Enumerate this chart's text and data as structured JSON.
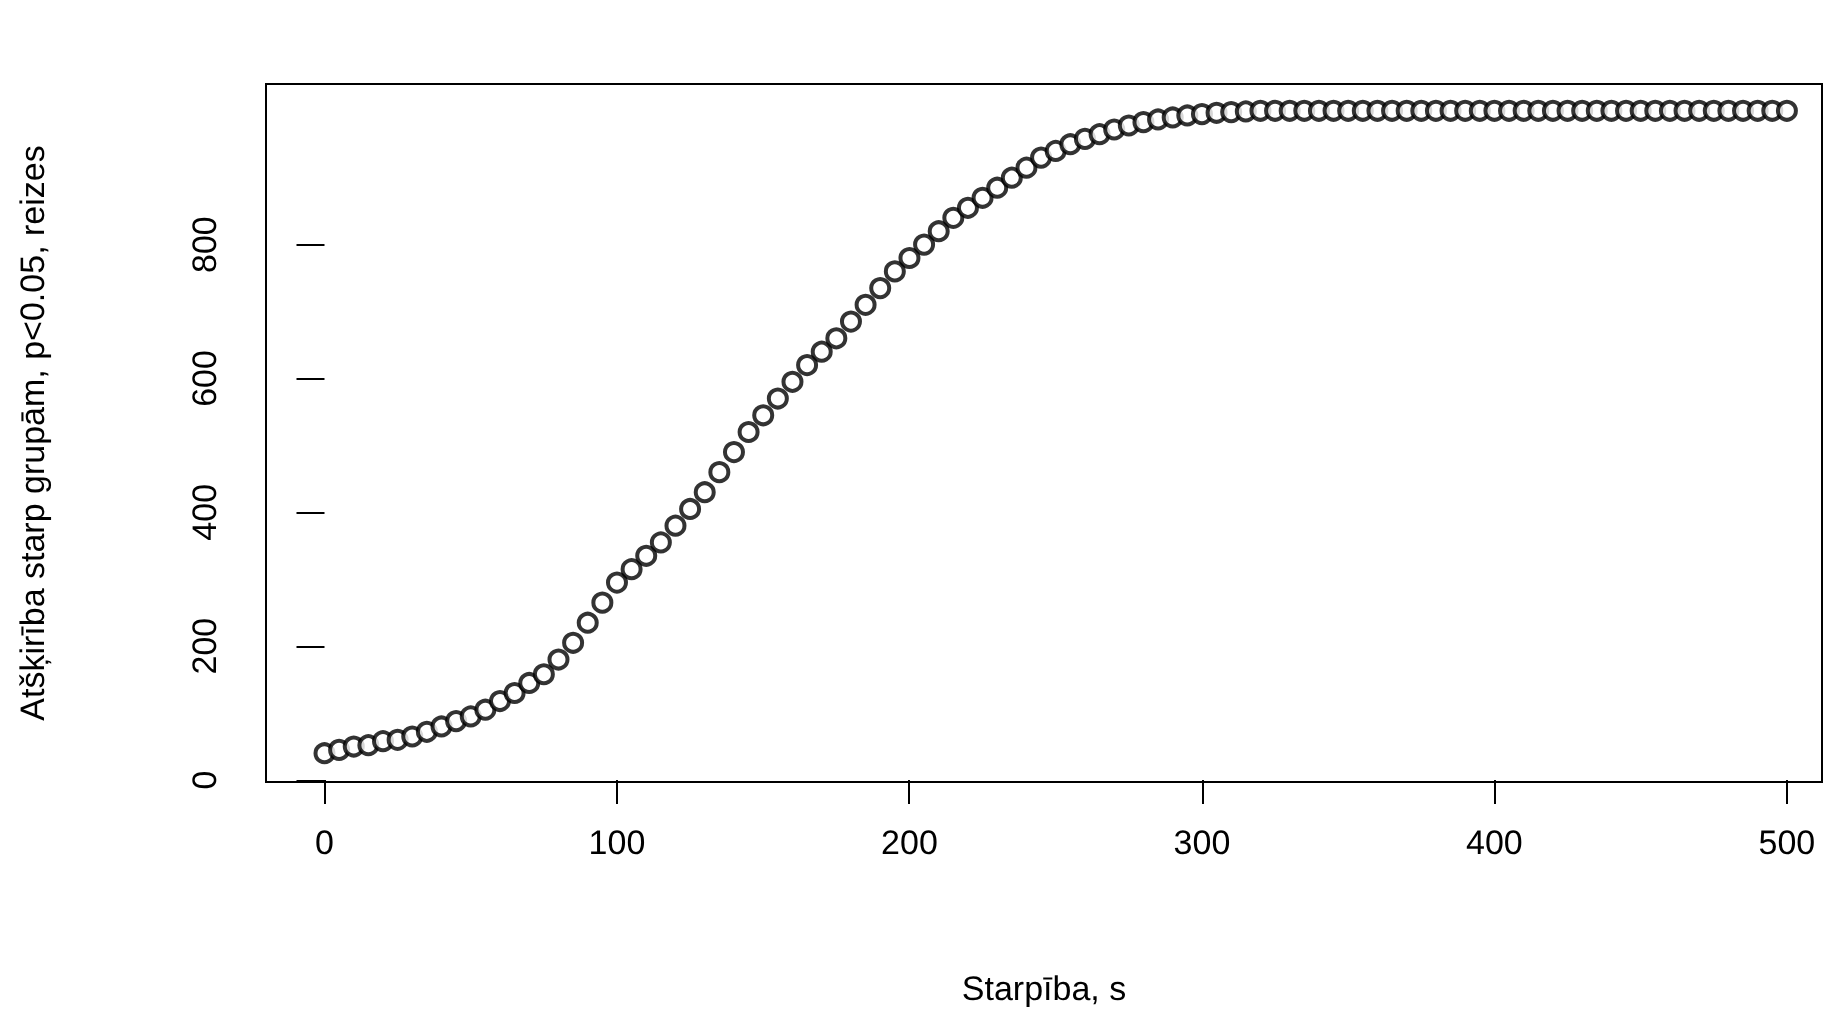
{
  "chart_data": {
    "type": "scatter",
    "xlabel": "Starpība, s",
    "ylabel": "Atšķirība starp grupām, p<0.05, reizes",
    "marker": "circle",
    "grid": false,
    "xlim": [
      -20,
      512
    ],
    "xticks": [
      0,
      100,
      200,
      300,
      400,
      500
    ],
    "ylim": [
      -3,
      1040
    ],
    "yticks": [
      0,
      200,
      400,
      600,
      800
    ],
    "series": [
      {
        "color": "#000000",
        "x": [
          0,
          5,
          10,
          15,
          20,
          25,
          30,
          35,
          40,
          45,
          50,
          55,
          60,
          65,
          70,
          75,
          80,
          85,
          90,
          95,
          100,
          105,
          110,
          115,
          120,
          125,
          130,
          135,
          140,
          145,
          150,
          155,
          160,
          165,
          170,
          175,
          180,
          185,
          190,
          195,
          200,
          205,
          210,
          215,
          220,
          225,
          230,
          235,
          240,
          245,
          250,
          255,
          260,
          265,
          270,
          275,
          280,
          285,
          290,
          295,
          300,
          305,
          310,
          315,
          320,
          325,
          330,
          335,
          340,
          345,
          350,
          355,
          360,
          365,
          370,
          375,
          380,
          385,
          390,
          395,
          400,
          405,
          410,
          415,
          420,
          425,
          430,
          435,
          440,
          445,
          450,
          455,
          460,
          465,
          470,
          475,
          480,
          485,
          490,
          495,
          500
        ],
        "values": [
          40,
          45,
          50,
          52,
          58,
          60,
          65,
          72,
          80,
          88,
          95,
          105,
          118,
          130,
          145,
          158,
          180,
          205,
          235,
          265,
          295,
          315,
          335,
          355,
          380,
          405,
          430,
          460,
          490,
          520,
          545,
          570,
          595,
          620,
          640,
          660,
          685,
          710,
          735,
          760,
          780,
          800,
          820,
          840,
          855,
          870,
          885,
          900,
          915,
          930,
          940,
          950,
          958,
          965,
          972,
          978,
          983,
          987,
          990,
          993,
          995,
          997,
          998,
          999,
          1000,
          1000,
          1000,
          1000,
          1000,
          1000,
          1000,
          1000,
          1000,
          1000,
          1000,
          1000,
          1000,
          1000,
          1000,
          1000,
          1000,
          1000,
          1000,
          1000,
          1000,
          1000,
          1000,
          1000,
          1000,
          1000,
          1000,
          1000,
          1000,
          1000,
          1000,
          1000,
          1000,
          1000,
          1000,
          1000,
          1000
        ]
      }
    ]
  }
}
